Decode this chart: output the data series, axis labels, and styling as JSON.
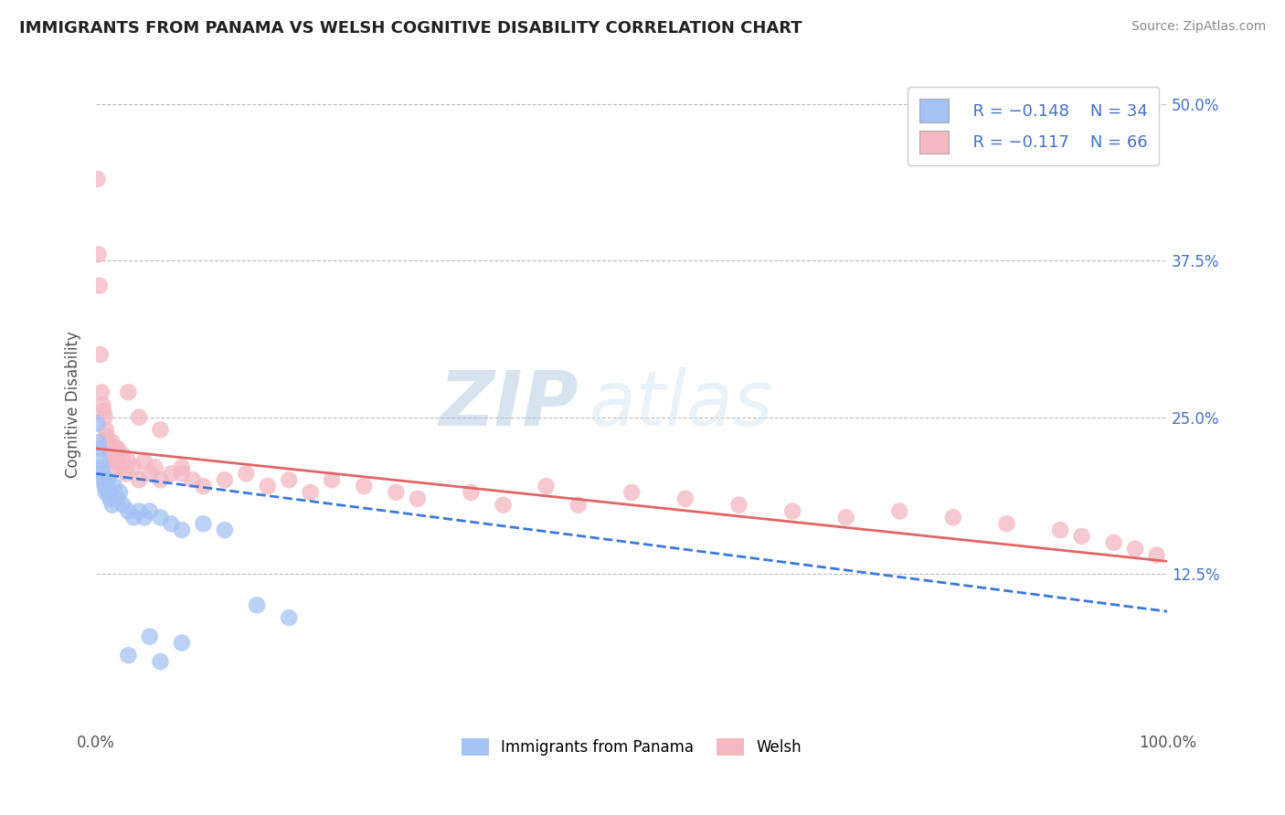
{
  "title": "IMMIGRANTS FROM PANAMA VS WELSH COGNITIVE DISABILITY CORRELATION CHART",
  "source": "Source: ZipAtlas.com",
  "ylabel": "Cognitive Disability",
  "legend_label1": "Immigrants from Panama",
  "legend_label2": "Welsh",
  "blue_color": "#a4c2f4",
  "pink_color": "#f4b8c1",
  "blue_line_color": "#3c78d8",
  "pink_line_color": "#e06666",
  "watermark_zip": "ZIP",
  "watermark_atlas": "atlas",
  "xlim": [
    0,
    100
  ],
  "ylim": [
    0,
    52
  ],
  "yticks": [
    12.5,
    25.0,
    37.5,
    50.0
  ],
  "xticks": [
    0,
    100
  ],
  "background_color": "#ffffff",
  "grid_color": "#bbbbbb",
  "panama_x": [
    0.1,
    0.2,
    0.3,
    0.4,
    0.5,
    0.6,
    0.7,
    0.8,
    0.9,
    1.0,
    1.1,
    1.2,
    1.3,
    1.5,
    1.7,
    2.0,
    2.2,
    2.5,
    3.0,
    3.5,
    4.0,
    4.5,
    5.0,
    6.0,
    7.0,
    8.0,
    10.0,
    12.0,
    15.0,
    18.0,
    5.0,
    8.0,
    3.0,
    6.0
  ],
  "panama_y": [
    24.5,
    23.0,
    22.5,
    21.5,
    21.0,
    20.5,
    20.0,
    19.5,
    19.0,
    19.5,
    20.0,
    19.0,
    18.5,
    18.0,
    19.5,
    18.5,
    19.0,
    18.0,
    17.5,
    17.0,
    17.5,
    17.0,
    17.5,
    17.0,
    16.5,
    16.0,
    16.5,
    16.0,
    10.0,
    9.0,
    7.5,
    7.0,
    6.0,
    5.5
  ],
  "welsh_x": [
    0.1,
    0.2,
    0.3,
    0.4,
    0.5,
    0.6,
    0.7,
    0.8,
    0.9,
    1.0,
    1.1,
    1.2,
    1.3,
    1.4,
    1.5,
    1.6,
    1.7,
    1.8,
    1.9,
    2.0,
    2.2,
    2.5,
    2.8,
    3.0,
    3.5,
    4.0,
    4.5,
    5.0,
    5.5,
    6.0,
    7.0,
    8.0,
    9.0,
    10.0,
    12.0,
    14.0,
    16.0,
    18.0,
    20.0,
    22.0,
    25.0,
    28.0,
    30.0,
    35.0,
    38.0,
    42.0,
    45.0,
    50.0,
    55.0,
    60.0,
    65.0,
    70.0,
    75.0,
    80.0,
    85.0,
    90.0,
    92.0,
    95.0,
    97.0,
    99.0,
    3.0,
    4.0,
    6.0,
    2.0,
    1.5,
    8.0
  ],
  "welsh_y": [
    44.0,
    38.0,
    35.5,
    30.0,
    27.0,
    26.0,
    25.5,
    25.0,
    24.0,
    23.5,
    23.0,
    22.5,
    22.0,
    22.5,
    23.0,
    21.5,
    22.0,
    21.0,
    22.5,
    21.5,
    21.0,
    22.0,
    20.5,
    21.5,
    21.0,
    20.0,
    21.5,
    20.5,
    21.0,
    20.0,
    20.5,
    21.0,
    20.0,
    19.5,
    20.0,
    20.5,
    19.5,
    20.0,
    19.0,
    20.0,
    19.5,
    19.0,
    18.5,
    19.0,
    18.0,
    19.5,
    18.0,
    19.0,
    18.5,
    18.0,
    17.5,
    17.0,
    17.5,
    17.0,
    16.5,
    16.0,
    15.5,
    15.0,
    14.5,
    14.0,
    27.0,
    25.0,
    24.0,
    22.5,
    18.5,
    20.5
  ],
  "panama_trend_x": [
    0,
    100
  ],
  "panama_trend_y": [
    20.5,
    9.5
  ],
  "welsh_trend_x": [
    0,
    100
  ],
  "welsh_trend_y": [
    22.5,
    13.5
  ]
}
